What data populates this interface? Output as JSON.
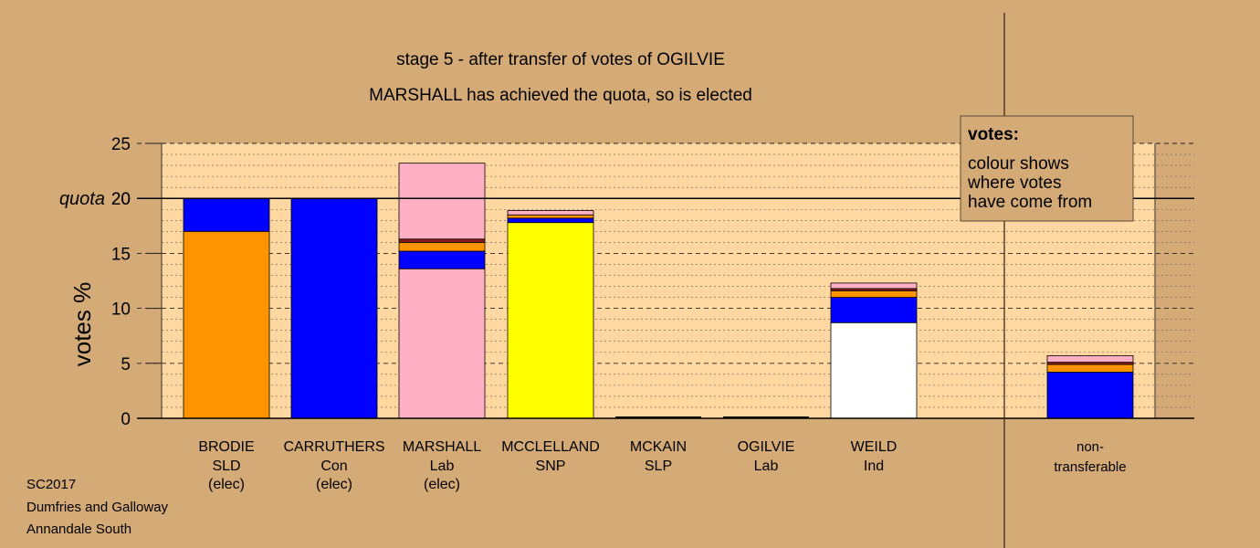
{
  "chart_data": {
    "type": "bar",
    "stacked": true,
    "title": "stage 5 - after transfer of votes of OGILVIE",
    "subtitle": "MARSHALL has achieved the quota, so is elected",
    "ylabel": "votes %",
    "ylim": [
      0,
      25
    ],
    "yticks": [
      "0",
      "5",
      "10",
      "15",
      "20",
      "25"
    ],
    "quota": {
      "label": "quota",
      "value": 20
    },
    "grid": "dashed minor lines",
    "legend": {
      "placement": "top-right",
      "title": "votes:",
      "lines": [
        "colour shows",
        "where votes",
        "have come from"
      ]
    },
    "colors": {
      "SLD": "#ff9400",
      "Con": "#0000ff",
      "Lab": "#ffb0c4",
      "SNP": "#ffff00",
      "Ind": "#ffffff",
      "other": "#8b1a1a"
    },
    "candidates": [
      {
        "name": "BRODIE",
        "party": "SLD",
        "status": "(elec)",
        "segments": [
          {
            "source": "SLD",
            "value": 17.0
          },
          {
            "source": "Con",
            "value": 3.0
          }
        ]
      },
      {
        "name": "CARRUTHERS",
        "party": "Con",
        "status": "(elec)",
        "segments": [
          {
            "source": "Con",
            "value": 20.0
          }
        ]
      },
      {
        "name": "MARSHALL",
        "party": "Lab",
        "status": "(elec)",
        "segments": [
          {
            "source": "Lab",
            "value": 13.6
          },
          {
            "source": "Con",
            "value": 1.6
          },
          {
            "source": "SLD",
            "value": 0.8
          },
          {
            "source": "other",
            "value": 0.3
          },
          {
            "source": "Lab",
            "value": 6.9
          }
        ]
      },
      {
        "name": "MCCLELLAND",
        "party": "SNP",
        "status": "",
        "segments": [
          {
            "source": "SNP",
            "value": 17.8
          },
          {
            "source": "Con",
            "value": 0.4
          },
          {
            "source": "SLD",
            "value": 0.3
          },
          {
            "source": "Lab",
            "value": 0.4
          }
        ]
      },
      {
        "name": "MCKAIN",
        "party": "SLP",
        "status": "",
        "segments": []
      },
      {
        "name": "OGILVIE",
        "party": "Lab",
        "status": "",
        "segments": []
      },
      {
        "name": "WEILD",
        "party": "Ind",
        "status": "",
        "segments": [
          {
            "source": "Ind",
            "value": 8.7
          },
          {
            "source": "Con",
            "value": 2.3
          },
          {
            "source": "SLD",
            "value": 0.6
          },
          {
            "source": "other",
            "value": 0.2
          },
          {
            "source": "Lab",
            "value": 0.5
          }
        ]
      }
    ],
    "non_transferable": {
      "label_line1": "non-",
      "label_line2": "transferable",
      "segments": [
        {
          "source": "Con",
          "value": 4.2
        },
        {
          "source": "SLD",
          "value": 0.7
        },
        {
          "source": "other",
          "value": 0.2
        },
        {
          "source": "Lab",
          "value": 0.6
        }
      ]
    }
  },
  "footer": {
    "line1": "SC2017",
    "line2": "Dumfries and Galloway",
    "line3": "Annandale South"
  }
}
